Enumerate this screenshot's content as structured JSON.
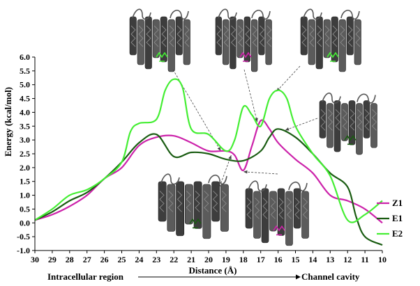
{
  "chart_data": {
    "type": "line",
    "title": "",
    "xlabel": "Distance (Å)",
    "ylabel": "Energy (kcal/mol)",
    "xlim": [
      30,
      10
    ],
    "ylim": [
      -1.0,
      6.0
    ],
    "x_ticks": [
      "30",
      "29",
      "28",
      "27",
      "26",
      "25",
      "24",
      "23",
      "22",
      "21",
      "20",
      "19",
      "18",
      "17",
      "16",
      "15",
      "14",
      "13",
      "12",
      "11",
      "10"
    ],
    "y_ticks": [
      "6.0",
      "5.5",
      "5.0",
      "4.5",
      "4.0",
      "3.5",
      "3.0",
      "2.5",
      "2.0",
      "1.5",
      "1.0",
      "0.5",
      "0.0",
      "-0.5",
      "-1.0"
    ],
    "legend_position": "right",
    "region_left": "Intracellular region",
    "region_right": "Channel cavity",
    "series": [
      {
        "name": "Z1",
        "color": "#cc22aa",
        "points": [
          [
            30,
            0.1
          ],
          [
            29,
            0.3
          ],
          [
            28,
            0.6
          ],
          [
            27,
            1.0
          ],
          [
            26,
            1.6
          ],
          [
            25,
            2.0
          ],
          [
            24,
            2.8
          ],
          [
            23,
            3.1
          ],
          [
            22,
            3.15
          ],
          [
            21,
            2.9
          ],
          [
            20,
            2.6
          ],
          [
            19,
            2.6
          ],
          [
            18.5,
            2.45
          ],
          [
            18,
            1.9
          ],
          [
            17.5,
            2.8
          ],
          [
            17,
            3.7
          ],
          [
            16.5,
            3.4
          ],
          [
            16,
            2.9
          ],
          [
            15,
            2.3
          ],
          [
            14,
            1.8
          ],
          [
            13,
            1.0
          ],
          [
            12,
            0.8
          ],
          [
            11,
            0.5
          ],
          [
            10,
            0.0
          ]
        ]
      },
      {
        "name": "E1",
        "color": "#1a5c12",
        "points": [
          [
            30,
            0.1
          ],
          [
            29,
            0.4
          ],
          [
            28,
            0.8
          ],
          [
            27,
            1.1
          ],
          [
            26,
            1.6
          ],
          [
            25,
            2.2
          ],
          [
            24,
            2.9
          ],
          [
            23,
            3.2
          ],
          [
            22,
            2.4
          ],
          [
            21,
            2.55
          ],
          [
            20,
            2.5
          ],
          [
            19,
            2.3
          ],
          [
            18,
            2.25
          ],
          [
            17,
            2.6
          ],
          [
            16.5,
            3.1
          ],
          [
            16,
            3.4
          ],
          [
            15,
            3.1
          ],
          [
            14,
            2.5
          ],
          [
            13,
            1.8
          ],
          [
            12,
            1.3
          ],
          [
            11.5,
            0.2
          ],
          [
            11,
            -0.5
          ],
          [
            10,
            -0.8
          ]
        ]
      },
      {
        "name": "E2",
        "color": "#44ee33",
        "points": [
          [
            30,
            0.1
          ],
          [
            29,
            0.5
          ],
          [
            28,
            1.0
          ],
          [
            27,
            1.2
          ],
          [
            26,
            1.6
          ],
          [
            25,
            2.2
          ],
          [
            24.5,
            3.3
          ],
          [
            24,
            3.6
          ],
          [
            23,
            3.75
          ],
          [
            22.5,
            4.8
          ],
          [
            22,
            5.2
          ],
          [
            21.5,
            4.9
          ],
          [
            21,
            3.4
          ],
          [
            20,
            3.2
          ],
          [
            19,
            2.6
          ],
          [
            18.5,
            3.0
          ],
          [
            18,
            4.2
          ],
          [
            17.5,
            3.9
          ],
          [
            17,
            3.5
          ],
          [
            16.5,
            4.5
          ],
          [
            16,
            4.8
          ],
          [
            15.5,
            4.5
          ],
          [
            15,
            3.5
          ],
          [
            14,
            2.5
          ],
          [
            13,
            1.7
          ],
          [
            12,
            0.1
          ],
          [
            11,
            0.3
          ],
          [
            10,
            0.8
          ]
        ]
      }
    ]
  }
}
